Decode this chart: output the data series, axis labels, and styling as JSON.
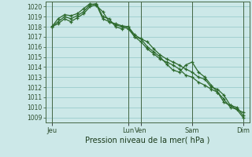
{
  "background_color": "#cce8e8",
  "grid_color": "#99cccc",
  "line_color": "#2d6a2d",
  "marker_color": "#2d6a2d",
  "xlabel_text": "Pression niveau de la mer( hPa )",
  "ylim": [
    1008.5,
    1020.5
  ],
  "yticks": [
    1009,
    1010,
    1011,
    1012,
    1013,
    1014,
    1015,
    1016,
    1017,
    1018,
    1019,
    1020
  ],
  "xtick_labels": [
    "Jeu",
    "Lun",
    "Ven",
    "Sam",
    "Dim"
  ],
  "xtick_positions": [
    0,
    12,
    14,
    22,
    30
  ],
  "vline_positions": [
    0,
    12,
    14,
    22,
    30
  ],
  "xlim": [
    -1,
    31
  ],
  "lines": [
    {
      "x": [
        0,
        1,
        2,
        3,
        4,
        5,
        6,
        7,
        8,
        9,
        10,
        11,
        12,
        13,
        14,
        15,
        16,
        17,
        18,
        19,
        20,
        21,
        22,
        23,
        24,
        25,
        26,
        27,
        28,
        29,
        30
      ],
      "y": [
        1018.0,
        1018.5,
        1019.0,
        1018.8,
        1019.1,
        1019.5,
        1020.2,
        1020.3,
        1019.0,
        1018.8,
        1018.0,
        1017.8,
        1018.0,
        1017.0,
        1016.8,
        1016.5,
        1015.8,
        1015.2,
        1014.8,
        1014.5,
        1014.2,
        1013.8,
        1013.5,
        1013.0,
        1012.8,
        1012.0,
        1011.8,
        1011.2,
        1010.2,
        1010.0,
        1009.2
      ]
    },
    {
      "x": [
        0,
        1,
        2,
        3,
        4,
        5,
        6,
        7,
        8,
        9,
        10,
        11,
        12,
        13,
        14,
        15,
        16,
        17,
        18,
        19,
        20,
        21,
        22,
        23,
        24,
        25,
        26,
        27,
        28,
        29,
        30
      ],
      "y": [
        1018.0,
        1018.8,
        1019.2,
        1019.1,
        1019.3,
        1019.8,
        1020.3,
        1020.1,
        1019.5,
        1018.5,
        1018.3,
        1018.1,
        1018.0,
        1017.2,
        1016.8,
        1016.0,
        1015.5,
        1015.0,
        1014.3,
        1013.7,
        1013.5,
        1014.2,
        1014.5,
        1013.5,
        1013.0,
        1012.2,
        1011.5,
        1010.5,
        1010.2,
        1009.8,
        1009.5
      ]
    },
    {
      "x": [
        0,
        1,
        2,
        3,
        4,
        5,
        6,
        7,
        8,
        9,
        10,
        11,
        12,
        13,
        14,
        15,
        16,
        17,
        18,
        19,
        20,
        21,
        22,
        23,
        24,
        25,
        26,
        27,
        28,
        29,
        30
      ],
      "y": [
        1018.0,
        1018.3,
        1018.8,
        1018.5,
        1018.9,
        1019.3,
        1020.0,
        1020.2,
        1018.8,
        1018.5,
        1018.2,
        1018.0,
        1017.8,
        1017.0,
        1016.5,
        1015.8,
        1015.3,
        1014.8,
        1014.5,
        1014.2,
        1013.8,
        1013.2,
        1013.0,
        1012.5,
        1012.2,
        1011.8,
        1011.5,
        1010.8,
        1010.0,
        1009.8,
        1009.0
      ]
    }
  ]
}
